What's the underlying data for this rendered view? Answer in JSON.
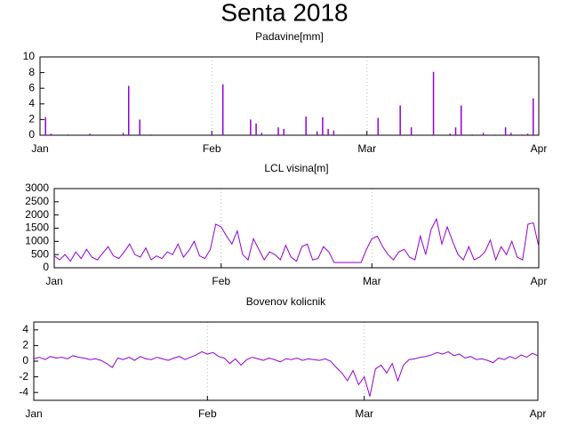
{
  "title": "Senta 2018",
  "chart_data": [
    {
      "type": "bar",
      "title": "Padavine[mm]",
      "color": "#9400d3",
      "grid": true,
      "x": [
        0,
        1,
        2,
        3,
        4,
        5,
        6,
        7,
        8,
        9,
        10,
        11,
        12,
        13,
        14,
        15,
        16,
        17,
        18,
        19,
        20,
        21,
        22,
        23,
        24,
        25,
        26,
        27,
        28,
        29,
        30,
        31,
        32,
        33,
        34,
        35,
        36,
        37,
        38,
        39,
        40,
        41,
        42,
        43,
        44,
        45,
        46,
        47,
        48,
        49,
        50,
        51,
        52,
        53,
        54,
        55,
        56,
        57,
        58,
        59,
        60,
        61,
        62,
        63,
        64,
        65,
        66,
        67,
        68,
        69,
        70,
        71,
        72,
        73,
        74,
        75,
        76,
        77,
        78,
        79,
        80,
        81,
        82,
        83,
        84,
        85,
        86,
        87,
        88,
        89,
        90
      ],
      "values": [
        0,
        2.3,
        0.2,
        0,
        0,
        0.1,
        0,
        0,
        0,
        0.2,
        0,
        0,
        0,
        0,
        0,
        0.3,
        6.3,
        0,
        2,
        0,
        0.1,
        0,
        0,
        0,
        0,
        0,
        0,
        0,
        0,
        0,
        0,
        0.2,
        0,
        6.5,
        0,
        0,
        0,
        0,
        2,
        1.5,
        0.3,
        0,
        0,
        1,
        0.8,
        0,
        0,
        0,
        2.4,
        0,
        0.5,
        2.3,
        0.8,
        0.6,
        0,
        0,
        0,
        0,
        0,
        0,
        0,
        2.2,
        0,
        0,
        0,
        3.8,
        0,
        1,
        0,
        0,
        0,
        8.1,
        0,
        0,
        0.2,
        1,
        3.8,
        0,
        0.1,
        0,
        0.3,
        0,
        0.1,
        0,
        1,
        0.3,
        0,
        0.1,
        0.2,
        4.7,
        0
      ],
      "xlim": [
        0,
        90
      ],
      "xticks": [
        {
          "value": 0,
          "label": "Jan"
        },
        {
          "value": 31,
          "label": "Feb"
        },
        {
          "value": 59,
          "label": "Mar"
        },
        {
          "value": 90,
          "label": "Apr"
        }
      ],
      "ylim": [
        0,
        10
      ],
      "yticks": [
        0,
        2,
        4,
        6,
        8,
        10
      ]
    },
    {
      "type": "line",
      "title": "LCL visina[m]",
      "color": "#9400d3",
      "grid": true,
      "x": [
        0,
        1,
        2,
        3,
        4,
        5,
        6,
        7,
        8,
        9,
        10,
        11,
        12,
        13,
        14,
        15,
        16,
        17,
        18,
        19,
        20,
        21,
        22,
        23,
        24,
        25,
        26,
        27,
        28,
        29,
        30,
        31,
        32,
        33,
        34,
        35,
        36,
        37,
        38,
        39,
        40,
        41,
        42,
        43,
        44,
        45,
        46,
        47,
        48,
        49,
        50,
        51,
        52,
        53,
        54,
        55,
        56,
        57,
        58,
        59,
        60,
        61,
        62,
        63,
        64,
        65,
        66,
        67,
        68,
        69,
        70,
        71,
        72,
        73,
        74,
        75,
        76,
        77,
        78,
        79,
        80,
        81,
        82,
        83,
        84,
        85,
        86,
        87,
        88,
        89,
        90
      ],
      "values": [
        450,
        300,
        500,
        250,
        600,
        350,
        700,
        400,
        300,
        550,
        800,
        450,
        350,
        600,
        900,
        500,
        400,
        750,
        300,
        450,
        350,
        600,
        500,
        900,
        400,
        650,
        1000,
        450,
        350,
        700,
        1650,
        1550,
        1200,
        900,
        1400,
        500,
        300,
        1100,
        700,
        300,
        600,
        500,
        300,
        850,
        400,
        250,
        800,
        900,
        300,
        350,
        800,
        600,
        200,
        200,
        200,
        200,
        200,
        200,
        700,
        1100,
        1200,
        800,
        500,
        300,
        600,
        700,
        400,
        300,
        1200,
        500,
        1450,
        1850,
        900,
        1550,
        1000,
        500,
        300,
        800,
        300,
        400,
        600,
        1050,
        300,
        800,
        500,
        1000,
        400,
        300,
        1650,
        1700,
        800
      ],
      "xlim": [
        0,
        90
      ],
      "xticks": [
        {
          "value": 0,
          "label": "Jan"
        },
        {
          "value": 31,
          "label": "Feb"
        },
        {
          "value": 59,
          "label": "Mar"
        },
        {
          "value": 90,
          "label": "Apr"
        }
      ],
      "ylim": [
        0,
        3000
      ],
      "yticks": [
        0,
        500,
        1000,
        1500,
        2000,
        2500,
        3000
      ]
    },
    {
      "type": "line",
      "title": "Bovenov kolicnik",
      "color": "#9400d3",
      "grid": true,
      "x": [
        0,
        1,
        2,
        3,
        4,
        5,
        6,
        7,
        8,
        9,
        10,
        11,
        12,
        13,
        14,
        15,
        16,
        17,
        18,
        19,
        20,
        21,
        22,
        23,
        24,
        25,
        26,
        27,
        28,
        29,
        30,
        31,
        32,
        33,
        34,
        35,
        36,
        37,
        38,
        39,
        40,
        41,
        42,
        43,
        44,
        45,
        46,
        47,
        48,
        49,
        50,
        51,
        52,
        53,
        54,
        55,
        56,
        57,
        58,
        59,
        60,
        61,
        62,
        63,
        64,
        65,
        66,
        67,
        68,
        69,
        70,
        71,
        72,
        73,
        74,
        75,
        76,
        77,
        78,
        79,
        80,
        81,
        82,
        83,
        84,
        85,
        86,
        87,
        88,
        89,
        90
      ],
      "values": [
        0.3,
        0.5,
        0.2,
        0.6,
        0.4,
        0.5,
        0.3,
        0.7,
        0.5,
        0.4,
        0.2,
        0.3,
        0.1,
        -0.3,
        -0.8,
        0.4,
        0.2,
        0.5,
        0.1,
        0.6,
        0.3,
        0.2,
        0.5,
        0.3,
        0.1,
        0.4,
        0.6,
        0.2,
        0.5,
        0.8,
        1.2,
        0.9,
        1.1,
        0.6,
        0.4,
        -0.3,
        0.3,
        -0.5,
        0.2,
        0.5,
        0.3,
        0.1,
        0.4,
        0.2,
        -0.1,
        0.3,
        0.2,
        0.4,
        0.1,
        0.3,
        0.2,
        0.1,
        0.3,
        0.0,
        -0.8,
        -1.5,
        -2.5,
        -1.2,
        -3.0,
        -2.0,
        -4.5,
        -1.0,
        -0.5,
        -1.5,
        -0.3,
        -2.5,
        -0.5,
        0.2,
        0.3,
        0.5,
        0.6,
        0.8,
        1.1,
        0.9,
        1.2,
        0.7,
        0.9,
        0.4,
        0.6,
        0.2,
        0.3,
        0.1,
        -0.2,
        0.4,
        0.2,
        0.6,
        0.3,
        0.8,
        0.5,
        1.0,
        0.7
      ],
      "xlim": [
        0,
        90
      ],
      "xticks": [
        {
          "value": 0,
          "label": "Jan"
        },
        {
          "value": 31,
          "label": "Feb"
        },
        {
          "value": 59,
          "label": "Mar"
        },
        {
          "value": 90,
          "label": "Apr"
        }
      ],
      "ylim": [
        -5,
        5
      ],
      "yticks": [
        -4,
        -2,
        0,
        2,
        4
      ]
    }
  ]
}
